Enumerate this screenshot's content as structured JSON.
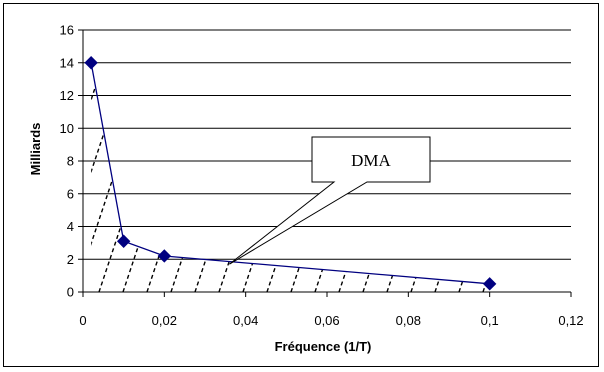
{
  "chart_data": {
    "type": "line",
    "xlabel": "Fréquence (1/T)",
    "ylabel": "Milliards",
    "xlim": [
      0,
      0.12
    ],
    "ylim": [
      0,
      16
    ],
    "x_ticks": [
      "0",
      "0,02",
      "0,04",
      "0,06",
      "0,08",
      "0,1",
      "0,12"
    ],
    "y_ticks": [
      "0",
      "2",
      "4",
      "6",
      "8",
      "10",
      "12",
      "14",
      "16"
    ],
    "grid": "horizontal",
    "series": [
      {
        "x": [
          0.002,
          0.01,
          0.02,
          0.1
        ],
        "y": [
          14,
          3.1,
          2.2,
          0.5
        ],
        "color": "#000080",
        "marker": "diamond",
        "area_fill": "dashed-hatch"
      }
    ],
    "annotation": {
      "text": "DMA",
      "points_to": {
        "x": 0.036,
        "y": 1.7
      }
    }
  }
}
